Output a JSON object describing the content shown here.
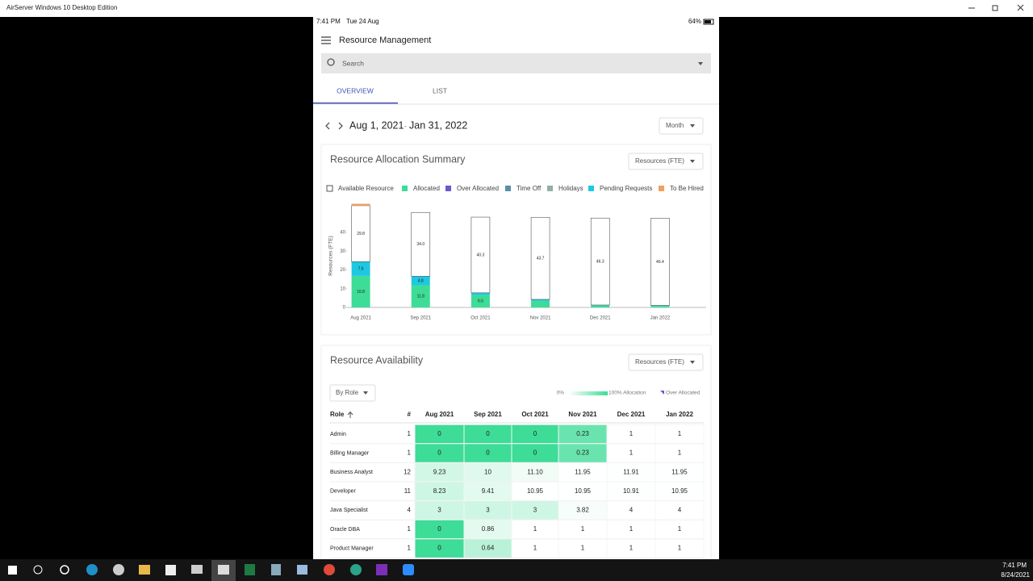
{
  "window": {
    "title": "AirServer Windows 10 Desktop Edition"
  },
  "status_bar": {
    "time": "7:41 PM",
    "date": "Tue 24 Aug",
    "battery": "64%"
  },
  "app": {
    "title": "Resource Management",
    "search_placeholder": "Search",
    "tabs": [
      "OVERVIEW",
      "LIST"
    ],
    "date_range_start": "Aug 1, 2021",
    "date_range_separator": "-",
    "date_range_end": "Jan 31, 2022",
    "period": "Month"
  },
  "chart_data": {
    "type": "bar",
    "title": "Resource Allocation Summary",
    "unit_selector": "Resources (FTE)",
    "ylabel": "Resources (FTE)",
    "categories": [
      "Aug 2021",
      "Sep 2021",
      "Oct 2021",
      "Nov 2021",
      "Dec 2021",
      "Jan 2022"
    ],
    "series": [
      {
        "name": "Available Resource",
        "color": "#ffffff",
        "values": [
          29.8,
          34.0,
          40.3,
          43.7,
          46.3,
          46.4
        ],
        "value_labels": [
          "29.8",
          "34.0",
          "40.3",
          "43.7",
          "46.3",
          "46.4"
        ]
      },
      {
        "name": "Allocated",
        "color": "#3ddc97",
        "values": [
          16.8,
          11.8,
          6.6,
          3.5,
          1.0,
          0.8
        ]
      },
      {
        "name": "Over Allocated",
        "color": "#6a5acd",
        "values": [
          0,
          0,
          0,
          0,
          0,
          0
        ]
      },
      {
        "name": "Time Off",
        "color": "#5b8fa8",
        "values": [
          0,
          0,
          0,
          0,
          0,
          0
        ]
      },
      {
        "name": "Holidays",
        "color": "#8fb0aa",
        "values": [
          0,
          0,
          0,
          0,
          0,
          0
        ]
      },
      {
        "name": "Pending Requests",
        "color": "#1ec8e0",
        "values": [
          7.6,
          4.8,
          1.2,
          0.8,
          0.3,
          0.3
        ]
      },
      {
        "name": "To Be Hired",
        "color": "#f0a060",
        "values": [
          1.0,
          0,
          0,
          0,
          0,
          0
        ]
      }
    ],
    "ylim": [
      0,
      55
    ],
    "yticks": [
      0,
      10,
      20,
      30,
      40
    ]
  },
  "availability": {
    "title": "Resource Availability",
    "unit_selector": "Resources (FTE)",
    "group_by": "By Role",
    "legend_min": "0%",
    "legend_max": "100% Allocation",
    "legend_over": "Over Allocated",
    "columns": [
      "Role",
      "#",
      "Aug 2021",
      "Sep 2021",
      "Oct 2021",
      "Nov 2021",
      "Dec 2021",
      "Jan 2022"
    ],
    "rows": [
      [
        "Admin",
        "1",
        "0",
        "0",
        "0",
        "0.23",
        "1",
        "1"
      ],
      [
        "Billing Manager",
        "1",
        "0",
        "0",
        "0",
        "0.23",
        "1",
        "1"
      ],
      [
        "Business Analyst",
        "12",
        "9.23",
        "10",
        "11.10",
        "11.95",
        "11.91",
        "11.95"
      ],
      [
        "Developer",
        "11",
        "8.23",
        "9.41",
        "10.95",
        "10.95",
        "10.91",
        "10.95"
      ],
      [
        "Java Specialist",
        "4",
        "3",
        "3",
        "3",
        "3.82",
        "4",
        "4"
      ],
      [
        "Oracle DBA",
        "1",
        "0",
        "0.86",
        "1",
        "1",
        "1",
        "1"
      ],
      [
        "Product Manager",
        "1",
        "0",
        "0.64",
        "1",
        "1",
        "1",
        "1"
      ]
    ]
  },
  "taskbar": {
    "time": "7:41 PM",
    "date": "8/24/2021"
  }
}
